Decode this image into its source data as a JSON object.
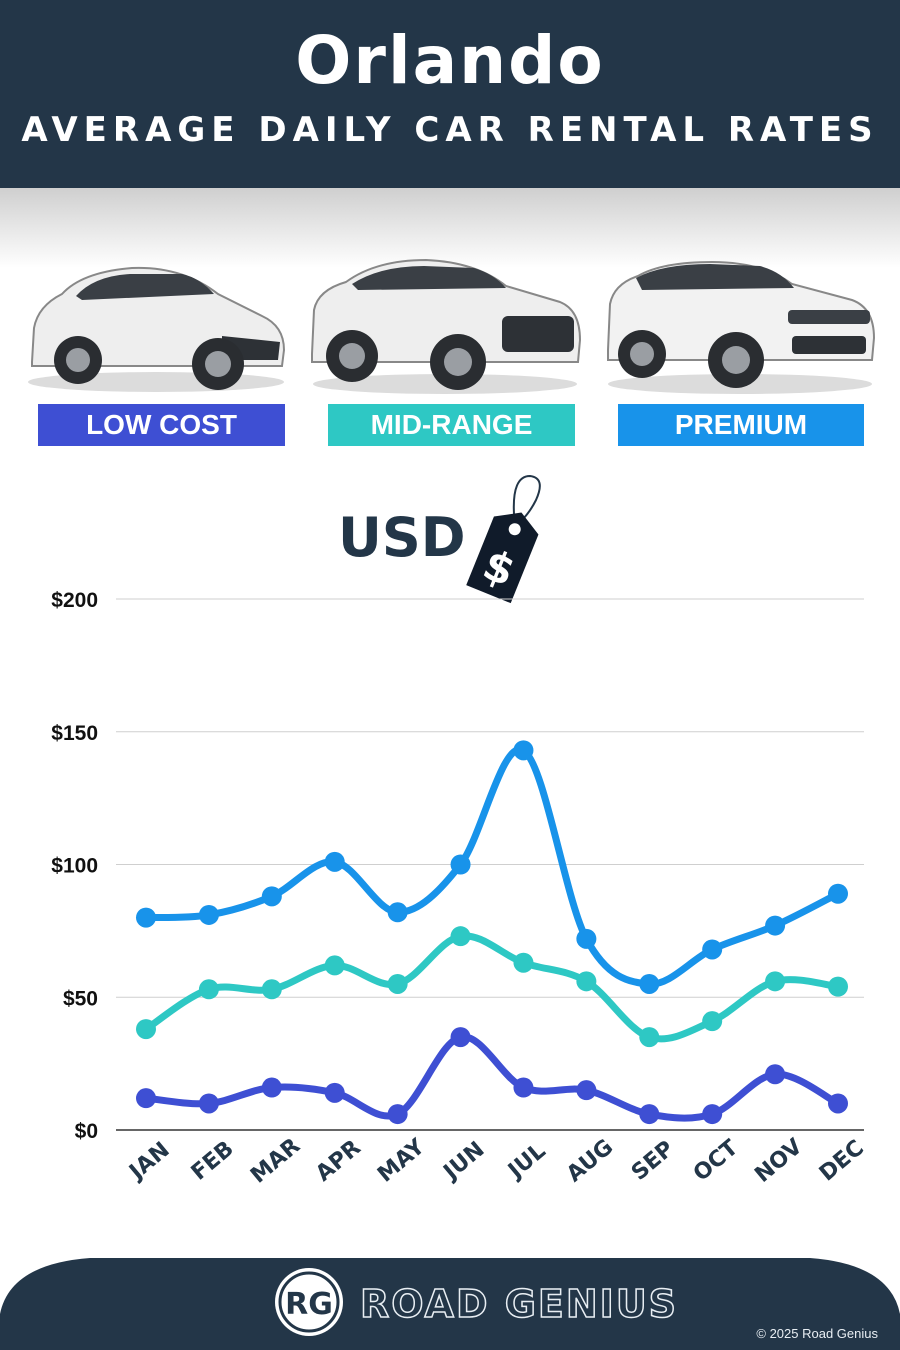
{
  "header": {
    "title": "Orlando",
    "subtitle": "AVERAGE DAILY CAR RENTAL RATES"
  },
  "categories": {
    "low": {
      "label": "LOW COST",
      "color": "#3e4fd3"
    },
    "mid": {
      "label": "MID-RANGE",
      "color": "#2ec8c4"
    },
    "premium": {
      "label": "PREMIUM",
      "color": "#1893ea"
    }
  },
  "currency": {
    "label": "USD",
    "symbol": "$"
  },
  "chart_data": {
    "type": "line",
    "categories": [
      "JAN",
      "FEB",
      "MAR",
      "APR",
      "MAY",
      "JUN",
      "JUL",
      "AUG",
      "SEP",
      "OCT",
      "NOV",
      "DEC"
    ],
    "y_ticks": [
      "$0",
      "$50",
      "$100",
      "$150",
      "$200"
    ],
    "ylim": [
      0,
      200
    ],
    "grid": true,
    "series": [
      {
        "name": "PREMIUM",
        "color": "#1893ea",
        "values": [
          80,
          81,
          88,
          101,
          82,
          100,
          143,
          72,
          55,
          68,
          77,
          89
        ]
      },
      {
        "name": "MID-RANGE",
        "color": "#2ec8c4",
        "values": [
          38,
          53,
          53,
          62,
          55,
          73,
          63,
          56,
          35,
          41,
          56,
          54
        ]
      },
      {
        "name": "LOW COST",
        "color": "#3e4fd3",
        "values": [
          12,
          10,
          16,
          14,
          6,
          35,
          16,
          15,
          6,
          6,
          21,
          10
        ]
      }
    ]
  },
  "footer": {
    "logo_text": "RG",
    "brand": "ROAD GENIUS",
    "copyright": "© 2025 Road Genius"
  }
}
